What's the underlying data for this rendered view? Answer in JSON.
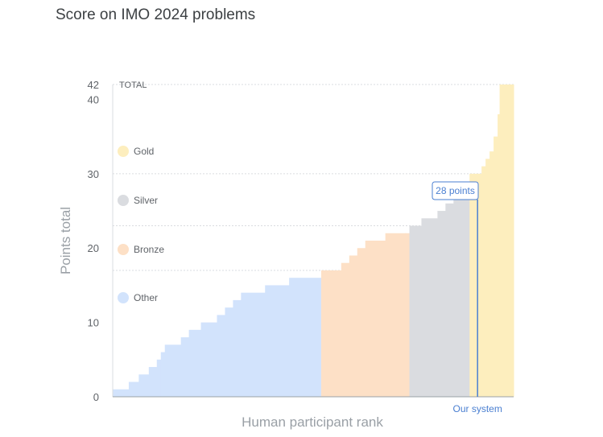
{
  "chart_data": {
    "type": "area",
    "title": "Score on IMO 2024 problems",
    "xlabel": "Human participant rank",
    "ylabel": "Points total",
    "ylim": [
      0,
      42
    ],
    "yticks": [
      0,
      10,
      20,
      30,
      40,
      42
    ],
    "grid_lines": [
      42,
      30,
      23,
      17
    ],
    "grid_label": "TOTAL",
    "categories": [
      {
        "name": "Other",
        "color": "#d2e3fc",
        "steps": [
          [
            0,
            1
          ],
          [
            4,
            2
          ],
          [
            6.5,
            3
          ],
          [
            9,
            4
          ],
          [
            11,
            5
          ],
          [
            12,
            6
          ],
          [
            13,
            7
          ],
          [
            17,
            8
          ],
          [
            19,
            9
          ],
          [
            22,
            10
          ],
          [
            26,
            11
          ],
          [
            28,
            12
          ],
          [
            30,
            13
          ],
          [
            32,
            14
          ],
          [
            38,
            15
          ],
          [
            44,
            16
          ]
        ]
      },
      {
        "name": "Bronze",
        "color": "#fde0c6",
        "steps": [
          [
            52,
            17
          ],
          [
            57,
            18
          ],
          [
            59,
            19
          ],
          [
            61,
            20
          ],
          [
            63,
            21
          ],
          [
            68,
            22
          ],
          [
            73,
            22
          ]
        ]
      },
      {
        "name": "Silver",
        "color": "#dadce0",
        "steps": [
          [
            74,
            23
          ],
          [
            77,
            24
          ],
          [
            81,
            25
          ],
          [
            83,
            26
          ],
          [
            85,
            27
          ],
          [
            87,
            28
          ]
        ]
      },
      {
        "name": "Gold",
        "color": "#fdeebe",
        "steps": [
          [
            89,
            30
          ],
          [
            92,
            31
          ],
          [
            93,
            32
          ],
          [
            94,
            33
          ],
          [
            95,
            35
          ],
          [
            96,
            38
          ],
          [
            96.5,
            42
          ],
          [
            97,
            42
          ]
        ]
      }
    ],
    "legend_order": [
      "Gold",
      "Silver",
      "Bronze",
      "Other"
    ],
    "highlight": {
      "label": "Our system",
      "value": 28,
      "annotation": "28 points",
      "color": "#4a7fd1"
    }
  }
}
